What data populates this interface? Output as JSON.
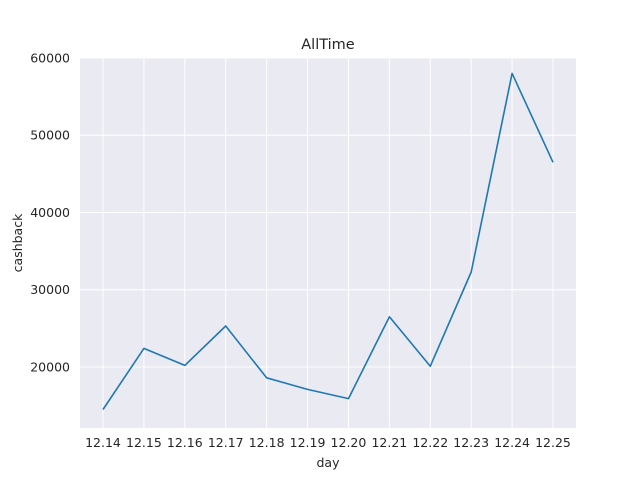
{
  "chart_data": {
    "type": "line",
    "title": "AllTime",
    "xlabel": "day",
    "ylabel": "cashback",
    "x": [
      "12.14",
      "12.15",
      "12.16",
      "12.17",
      "12.18",
      "12.19",
      "12.20",
      "12.21",
      "12.22",
      "12.23",
      "12.24",
      "12.25"
    ],
    "series": [
      {
        "values": [
          14500,
          22400,
          20200,
          25300,
          18600,
          17100,
          15900,
          26500,
          20100,
          32300,
          58000,
          46500
        ],
        "color": "#1f77b4"
      }
    ],
    "yticks": [
      20000,
      30000,
      40000,
      50000,
      60000
    ],
    "ylim": [
      12100,
      60000
    ],
    "grid": true,
    "background_color": "#eaeaf2",
    "grid_color": "#ffffff"
  }
}
